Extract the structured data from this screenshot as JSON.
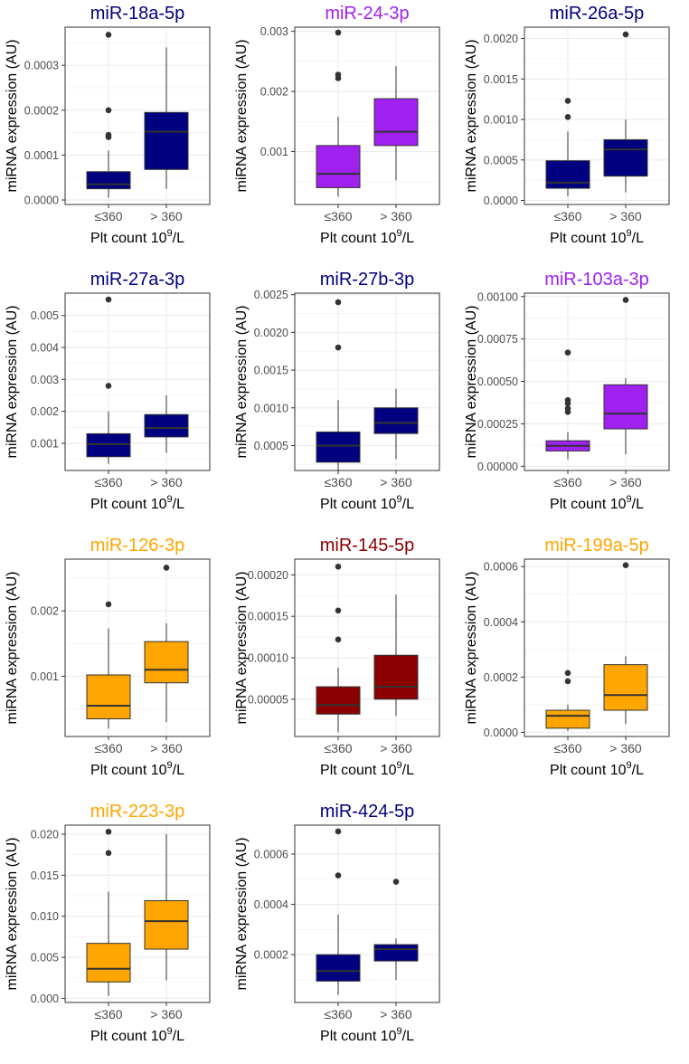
{
  "chart_data": [
    {
      "type": "box",
      "title": "miR-18a-5p",
      "title_color": "#000080",
      "fill": "#000080",
      "xlabel": "Plt count 10^9/L",
      "xlabel_base": "Plt count 10",
      "xlabel_sup": "9",
      "xlabel_tail": "/L",
      "ylabel": "miRNA expression (AU)",
      "categories": [
        "≤360",
        "> 360"
      ],
      "ylim": [
        -1e-05,
        0.000385
      ],
      "yticks": [
        "0.0000",
        "0.0001",
        "0.0002",
        "0.0003"
      ],
      "ytick_values": [
        0,
        0.0001,
        0.0002,
        0.0003
      ],
      "boxes": [
        {
          "whislo": 5e-06,
          "q1": 2.5e-05,
          "med": 3.5e-05,
          "q3": 6.3e-05,
          "whishi": 0.00011,
          "outliers": [
            0.00014,
            0.000145,
            0.0002,
            0.000368
          ]
        },
        {
          "whislo": 2.5e-05,
          "q1": 6.8e-05,
          "med": 0.000152,
          "q3": 0.000195,
          "whishi": 0.00034,
          "outliers": []
        }
      ]
    },
    {
      "type": "box",
      "title": "miR-24-3p",
      "title_color": "#a020f0",
      "fill": "#a020f0",
      "xlabel": "Plt count 10^9/L",
      "xlabel_base": "Plt count 10",
      "xlabel_sup": "9",
      "xlabel_tail": "/L",
      "ylabel": "miRNA expression (AU)",
      "categories": [
        "≤360",
        "> 360"
      ],
      "ylim": [
        0.00012,
        0.00307
      ],
      "yticks": [
        "0.001",
        "0.002",
        "0.003"
      ],
      "ytick_values": [
        0.001,
        0.002,
        0.003
      ],
      "boxes": [
        {
          "whislo": 0.00025,
          "q1": 0.0004,
          "med": 0.00063,
          "q3": 0.0011,
          "whishi": 0.00158,
          "outliers": [
            0.00222,
            0.00228,
            0.00298
          ]
        },
        {
          "whislo": 0.00052,
          "q1": 0.0011,
          "med": 0.00133,
          "q3": 0.00188,
          "whishi": 0.00242,
          "outliers": []
        }
      ]
    },
    {
      "type": "box",
      "title": "miR-26a-5p",
      "title_color": "#000080",
      "fill": "#000080",
      "xlabel": "Plt count 10^9/L",
      "xlabel_base": "Plt count 10",
      "xlabel_sup": "9",
      "xlabel_tail": "/L",
      "ylabel": "miRNA expression (AU)",
      "categories": [
        "≤360",
        "> 360"
      ],
      "ylim": [
        -5e-05,
        0.00214
      ],
      "yticks": [
        "0.0000",
        "0.0005",
        "0.0010",
        "0.0015",
        "0.0020"
      ],
      "ytick_values": [
        0,
        0.0005,
        0.001,
        0.0015,
        0.002
      ],
      "boxes": [
        {
          "whislo": 5e-05,
          "q1": 0.00015,
          "med": 0.00022,
          "q3": 0.00049,
          "whishi": 0.00085,
          "outliers": [
            0.00103,
            0.00123
          ]
        },
        {
          "whislo": 0.0001,
          "q1": 0.0003,
          "med": 0.00063,
          "q3": 0.00075,
          "whishi": 0.001,
          "outliers": [
            0.00205
          ]
        }
      ]
    },
    {
      "type": "box",
      "title": "miR-27a-3p",
      "title_color": "#000080",
      "fill": "#000080",
      "xlabel": "Plt count 10^9/L",
      "xlabel_base": "Plt count 10",
      "xlabel_sup": "9",
      "xlabel_tail": "/L",
      "ylabel": "miRNA expression (AU)",
      "categories": [
        "≤360",
        "> 360"
      ],
      "ylim": [
        0.00015,
        0.0057
      ],
      "yticks": [
        "0.001",
        "0.002",
        "0.003",
        "0.004",
        "0.005"
      ],
      "ytick_values": [
        0.001,
        0.002,
        0.003,
        0.004,
        0.005
      ],
      "boxes": [
        {
          "whislo": 0.00035,
          "q1": 0.00058,
          "med": 0.00097,
          "q3": 0.0013,
          "whishi": 0.002,
          "outliers": [
            0.0028,
            0.0055
          ]
        },
        {
          "whislo": 0.0007,
          "q1": 0.0012,
          "med": 0.00148,
          "q3": 0.0019,
          "whishi": 0.0025,
          "outliers": []
        }
      ]
    },
    {
      "type": "box",
      "title": "miR-27b-3p",
      "title_color": "#000080",
      "fill": "#000080",
      "xlabel": "Plt count 10^9/L",
      "xlabel_base": "Plt count 10",
      "xlabel_sup": "9",
      "xlabel_tail": "/L",
      "ylabel": "miRNA expression (AU)",
      "categories": [
        "≤360",
        "> 360"
      ],
      "ylim": [
        0.00017,
        0.00252
      ],
      "yticks": [
        "0.0005",
        "0.0010",
        "0.0015",
        "0.0020",
        "0.0025"
      ],
      "ytick_values": [
        0.0005,
        0.001,
        0.0015,
        0.002,
        0.0025
      ],
      "boxes": [
        {
          "whislo": 0.00013,
          "q1": 0.00028,
          "med": 0.0005,
          "q3": 0.00068,
          "whishi": 0.0011,
          "outliers": [
            0.0018,
            0.0024
          ]
        },
        {
          "whislo": 0.00032,
          "q1": 0.00066,
          "med": 0.0008,
          "q3": 0.001,
          "whishi": 0.00125,
          "outliers": []
        }
      ]
    },
    {
      "type": "box",
      "title": "miR-103a-3p",
      "title_color": "#a020f0",
      "fill": "#a020f0",
      "xlabel": "Plt count 10^9/L",
      "xlabel_base": "Plt count 10",
      "xlabel_sup": "9",
      "xlabel_tail": "/L",
      "ylabel": "miRNA expression (AU)",
      "categories": [
        "≤360",
        "> 360"
      ],
      "ylim": [
        -2.5e-05,
        0.00102
      ],
      "yticks": [
        "0.00000",
        "0.00025",
        "0.00050",
        "0.00075",
        "0.00100"
      ],
      "ytick_values": [
        0,
        0.00025,
        0.0005,
        0.00075,
        0.001
      ],
      "boxes": [
        {
          "whislo": 4e-05,
          "q1": 9e-05,
          "med": 0.00012,
          "q3": 0.00015,
          "whishi": 0.0002,
          "outliers": [
            0.00032,
            0.00034,
            0.00037,
            0.00039,
            0.00067
          ]
        },
        {
          "whislo": 7e-05,
          "q1": 0.00022,
          "med": 0.00031,
          "q3": 0.00048,
          "whishi": 0.00052,
          "outliers": [
            0.00098
          ]
        }
      ]
    },
    {
      "type": "box",
      "title": "miR-126-3p",
      "title_color": "#ffa500",
      "fill": "#ffa500",
      "xlabel": "Plt count 10^9/L",
      "xlabel_base": "Plt count 10",
      "xlabel_sup": "9",
      "xlabel_tail": "/L",
      "ylabel": "miRNA expression (AU)",
      "categories": [
        "≤360",
        "> 360"
      ],
      "ylim": [
        8e-05,
        0.00279
      ],
      "yticks": [
        "0.001",
        "0.002"
      ],
      "ytick_values": [
        0.001,
        0.002
      ],
      "boxes": [
        {
          "whislo": 0.0002,
          "q1": 0.00035,
          "med": 0.00055,
          "q3": 0.00102,
          "whishi": 0.00173,
          "outliers": [
            0.0021
          ]
        },
        {
          "whislo": 0.0003,
          "q1": 0.0009,
          "med": 0.0011,
          "q3": 0.00153,
          "whishi": 0.00181,
          "outliers": [
            0.00266
          ]
        }
      ]
    },
    {
      "type": "box",
      "title": "miR-145-5p",
      "title_color": "#8b0000",
      "fill": "#8b0000",
      "xlabel": "Plt count 10^9/L",
      "xlabel_base": "Plt count 10",
      "xlabel_sup": "9",
      "xlabel_tail": "/L",
      "ylabel": "miRNA expression (AU)",
      "categories": [
        "≤360",
        "> 360"
      ],
      "ylim": [
        5e-06,
        0.000219
      ],
      "yticks": [
        "0.00005",
        "0.00010",
        "0.00015",
        "0.00020"
      ],
      "ytick_values": [
        5e-05,
        0.0001,
        0.00015,
        0.0002
      ],
      "boxes": [
        {
          "whislo": 1e-05,
          "q1": 3.2e-05,
          "med": 4.3e-05,
          "q3": 6.5e-05,
          "whishi": 8.8e-05,
          "outliers": [
            0.000122,
            0.000157,
            0.00021
          ]
        },
        {
          "whislo": 3e-05,
          "q1": 5e-05,
          "med": 6.5e-05,
          "q3": 0.000103,
          "whishi": 0.000176,
          "outliers": []
        }
      ]
    },
    {
      "type": "box",
      "title": "miR-199a-5p",
      "title_color": "#ffa500",
      "fill": "#ffa500",
      "xlabel": "Plt count 10^9/L",
      "xlabel_base": "Plt count 10",
      "xlabel_sup": "9",
      "xlabel_tail": "/L",
      "ylabel": "miRNA expression (AU)",
      "categories": [
        "≤360",
        "> 360"
      ],
      "ylim": [
        -1.5e-05,
        0.000627
      ],
      "yticks": [
        "0.0000",
        "0.0002",
        "0.0004",
        "0.0006"
      ],
      "ytick_values": [
        0,
        0.0002,
        0.0004,
        0.0006
      ],
      "boxes": [
        {
          "whislo": 5e-06,
          "q1": 1.5e-05,
          "med": 6e-05,
          "q3": 8e-05,
          "whishi": 0.0001,
          "outliers": [
            0.000185,
            0.000215
          ]
        },
        {
          "whislo": 3e-05,
          "q1": 8e-05,
          "med": 0.000135,
          "q3": 0.000245,
          "whishi": 0.000275,
          "outliers": [
            0.000605
          ]
        }
      ]
    },
    {
      "type": "box",
      "title": "miR-223-3p",
      "title_color": "#ffa500",
      "fill": "#ffa500",
      "xlabel": "Plt count 10^9/L",
      "xlabel_base": "Plt count 10",
      "xlabel_sup": "9",
      "xlabel_tail": "/L",
      "ylabel": "miRNA expression (AU)",
      "categories": [
        "≤360",
        "> 360"
      ],
      "ylim": [
        -0.0005,
        0.0211
      ],
      "yticks": [
        "0.000",
        "0.005",
        "0.010",
        "0.015",
        "0.020"
      ],
      "ytick_values": [
        0,
        0.005,
        0.01,
        0.015,
        0.02
      ],
      "boxes": [
        {
          "whislo": 0.0003,
          "q1": 0.002,
          "med": 0.0036,
          "q3": 0.0067,
          "whishi": 0.013,
          "outliers": [
            0.0177,
            0.0203
          ]
        },
        {
          "whislo": 0.0022,
          "q1": 0.006,
          "med": 0.0094,
          "q3": 0.0119,
          "whishi": 0.02,
          "outliers": []
        }
      ]
    },
    {
      "type": "box",
      "title": "miR-424-5p",
      "title_color": "#000080",
      "fill": "#000080",
      "xlabel": "Plt count 10^9/L",
      "xlabel_base": "Plt count 10",
      "xlabel_sup": "9",
      "xlabel_tail": "/L",
      "ylabel": "miRNA expression (AU)",
      "categories": [
        "≤360",
        "> 360"
      ],
      "ylim": [
        1e-05,
        0.000715
      ],
      "yticks": [
        "0.0002",
        "0.0004",
        "0.0006"
      ],
      "ytick_values": [
        0.0002,
        0.0004,
        0.0006
      ],
      "boxes": [
        {
          "whislo": 4e-05,
          "q1": 9.5e-05,
          "med": 0.000135,
          "q3": 0.0002,
          "whishi": 0.00036,
          "outliers": [
            0.000515,
            0.00069
          ]
        },
        {
          "whislo": 0.0001,
          "q1": 0.000175,
          "med": 0.000222,
          "q3": 0.00024,
          "whishi": 0.000265,
          "outliers": [
            0.00049
          ]
        }
      ]
    }
  ]
}
